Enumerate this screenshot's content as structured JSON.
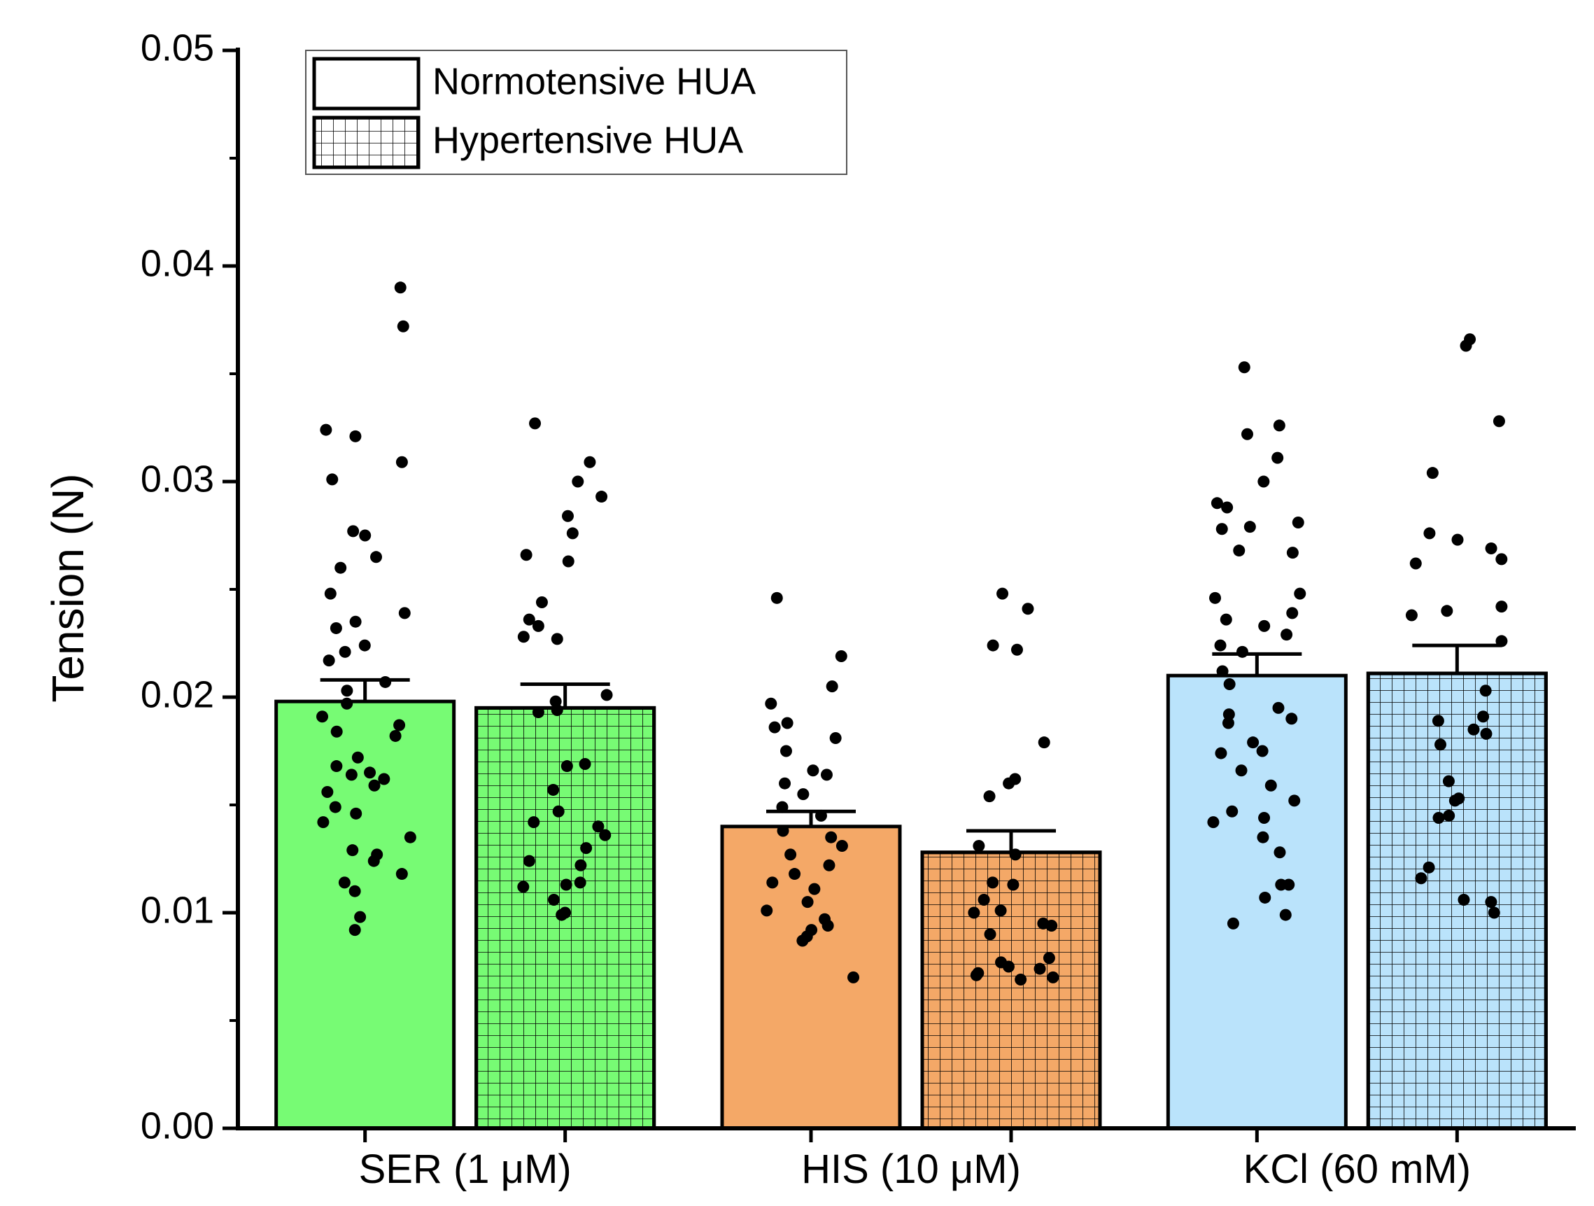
{
  "chart_data": {
    "type": "bar",
    "ylabel": "Tension (N)",
    "xlabel": "",
    "ylim": [
      0,
      0.05
    ],
    "yticks": [
      "0.00",
      "0.01",
      "0.02",
      "0.03",
      "0.04",
      "0.05"
    ],
    "ytick_values": [
      0,
      0.01,
      0.02,
      0.03,
      0.04,
      0.05
    ],
    "categories": [
      "SER (1 μM)",
      "HIS (10 μM)",
      "KCl (60 mM)"
    ],
    "category_colors": [
      "#77fb74",
      "#f4a867",
      "#bae3fb"
    ],
    "legend": {
      "position": "top-left",
      "entries": [
        {
          "label": "Normotensive HUA",
          "pattern": "solid"
        },
        {
          "label": "Hypertensive HUA",
          "pattern": "grid"
        }
      ]
    },
    "series": [
      {
        "name": "Normotensive HUA",
        "pattern": "solid",
        "values": [
          0.0198,
          0.014,
          0.021
        ],
        "errors": [
          0.001,
          0.0007,
          0.001
        ],
        "points": [
          [
            0.039,
            0.0372,
            0.0324,
            0.0321,
            0.0309,
            0.0301,
            0.0277,
            0.0275,
            0.0265,
            0.026,
            0.0248,
            0.0239,
            0.0235,
            0.0232,
            0.0224,
            0.0221,
            0.0217,
            0.0207,
            0.0203,
            0.0197,
            0.0191,
            0.0187,
            0.0184,
            0.0182,
            0.0172,
            0.0168,
            0.0165,
            0.0164,
            0.0162,
            0.0159,
            0.0156,
            0.0149,
            0.0146,
            0.0142,
            0.0135,
            0.0129,
            0.0127,
            0.0124,
            0.0118,
            0.0114,
            0.011,
            0.0098,
            0.0092
          ],
          [
            0.0246,
            0.0219,
            0.0205,
            0.0197,
            0.0188,
            0.0186,
            0.0181,
            0.0175,
            0.0166,
            0.0164,
            0.016,
            0.0155,
            0.0149,
            0.0145,
            0.0138,
            0.0135,
            0.0131,
            0.0127,
            0.0122,
            0.0118,
            0.0114,
            0.0111,
            0.0105,
            0.0101,
            0.0097,
            0.0094,
            0.0092,
            0.0089,
            0.0087,
            0.007
          ],
          [
            0.0353,
            0.0326,
            0.0322,
            0.0311,
            0.03,
            0.029,
            0.0288,
            0.0281,
            0.0279,
            0.0278,
            0.0268,
            0.0267,
            0.0248,
            0.0246,
            0.0239,
            0.0236,
            0.0233,
            0.0229,
            0.0224,
            0.0221,
            0.0212,
            0.0206,
            0.0195,
            0.0192,
            0.019,
            0.0188,
            0.0179,
            0.0175,
            0.0174,
            0.0166,
            0.0159,
            0.0152,
            0.0147,
            0.0144,
            0.0142,
            0.0135,
            0.0128,
            0.0113,
            0.0113,
            0.0107,
            0.0099,
            0.0095
          ]
        ]
      },
      {
        "name": "Hypertensive HUA",
        "pattern": "grid",
        "values": [
          0.0195,
          0.0128,
          0.0211
        ],
        "errors": [
          0.0011,
          0.001,
          0.0013
        ],
        "points": [
          [
            0.0327,
            0.0309,
            0.03,
            0.0293,
            0.0284,
            0.0276,
            0.0266,
            0.0263,
            0.0244,
            0.0236,
            0.0233,
            0.0228,
            0.0227,
            0.0201,
            0.0198,
            0.0194,
            0.0193,
            0.0169,
            0.0168,
            0.0157,
            0.0147,
            0.0142,
            0.014,
            0.0136,
            0.013,
            0.0124,
            0.0122,
            0.0114,
            0.0113,
            0.0112,
            0.0106,
            0.01,
            0.0099
          ],
          [
            0.0248,
            0.0241,
            0.0224,
            0.0222,
            0.0179,
            0.0162,
            0.016,
            0.0154,
            0.0131,
            0.0127,
            0.0114,
            0.0113,
            0.0106,
            0.0101,
            0.01,
            0.0095,
            0.0094,
            0.009,
            0.0079,
            0.0077,
            0.0075,
            0.0074,
            0.0072,
            0.0071,
            0.007,
            0.0069
          ],
          [
            0.0366,
            0.0363,
            0.0328,
            0.0304,
            0.0276,
            0.0273,
            0.0269,
            0.0264,
            0.0262,
            0.0242,
            0.024,
            0.0238,
            0.0226,
            0.0203,
            0.0191,
            0.0189,
            0.0185,
            0.0183,
            0.0178,
            0.0161,
            0.0153,
            0.0152,
            0.0145,
            0.0144,
            0.0121,
            0.0116,
            0.0106,
            0.0105,
            0.01
          ]
        ]
      }
    ]
  }
}
